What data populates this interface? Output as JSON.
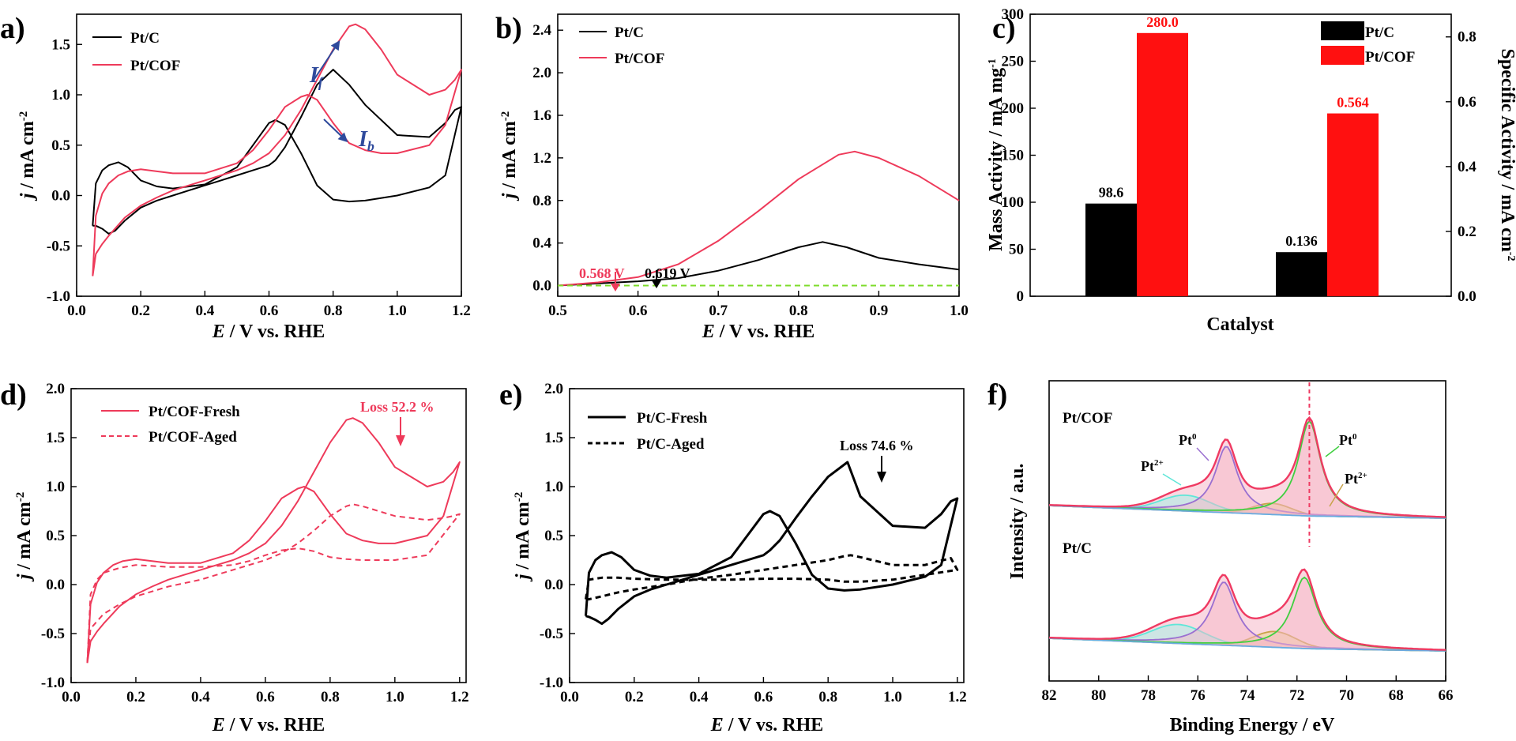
{
  "colors": {
    "black": "#000000",
    "red": "#ee3a5a",
    "barred": "#ff1010",
    "arrow_blue": "#2f4a9c",
    "dash_green": "#7ddc2a",
    "pt0_purple": "#9a6fd0",
    "pt0_green": "#3fcf3f",
    "pt2_cyan": "#5fe6d8",
    "pt2_gold": "#c8a24a",
    "envelope": "#ef3a62",
    "baseline": "#6aaae0",
    "fill_pink": "#f6b8c8",
    "fill_cyan": "#9ff2e8",
    "fill_gold": "#ecd68a"
  },
  "chart_data": [
    {
      "panel": "a)",
      "type": "line",
      "xlabel": {
        "sym": "E",
        "rest": " / V vs. RHE"
      },
      "ylabel": {
        "sym": "j",
        "rest": " / mA cm",
        "sup": "-2"
      },
      "xlim": [
        0.0,
        1.2
      ],
      "ylim": [
        -1.0,
        1.8
      ],
      "xticks": [
        "0.0",
        "0.2",
        "0.4",
        "0.6",
        "0.8",
        "1.0",
        "1.2"
      ],
      "yticks": [
        "-1.0",
        "-0.5",
        "0.0",
        "0.5",
        "1.0",
        "1.5"
      ],
      "legend": [
        "Pt/C",
        "Pt/COF"
      ],
      "annotations": {
        "forward": "I",
        "forward_sub": "f",
        "backward": "I",
        "backward_sub": "b"
      },
      "series": [
        {
          "name": "Pt/C",
          "color": "#000000",
          "x": [
            0.05,
            0.06,
            0.08,
            0.1,
            0.13,
            0.16,
            0.2,
            0.25,
            0.3,
            0.4,
            0.5,
            0.55,
            0.6,
            0.62,
            0.65,
            0.7,
            0.75,
            0.8,
            0.85,
            0.9,
            1.0,
            1.1,
            1.15,
            1.2,
            1.18,
            1.15,
            1.1,
            1.0,
            0.9,
            0.85,
            0.8,
            0.75,
            0.7,
            0.65,
            0.62,
            0.6,
            0.55,
            0.5,
            0.45,
            0.4,
            0.35,
            0.3,
            0.25,
            0.2,
            0.15,
            0.12,
            0.1,
            0.08,
            0.06,
            0.05
          ],
          "y": [
            -0.3,
            0.12,
            0.25,
            0.3,
            0.33,
            0.28,
            0.15,
            0.09,
            0.07,
            0.11,
            0.28,
            0.5,
            0.72,
            0.75,
            0.7,
            0.42,
            0.1,
            -0.04,
            -0.06,
            -0.05,
            0.0,
            0.08,
            0.2,
            0.88,
            0.85,
            0.72,
            0.58,
            0.6,
            0.9,
            1.1,
            1.25,
            1.1,
            0.78,
            0.48,
            0.35,
            0.3,
            0.25,
            0.2,
            0.15,
            0.1,
            0.05,
            0.0,
            -0.05,
            -0.12,
            -0.25,
            -0.35,
            -0.38,
            -0.33,
            -0.3,
            -0.3
          ]
        },
        {
          "name": "Pt/COF",
          "color": "#ee3a5a",
          "x": [
            0.05,
            0.06,
            0.08,
            0.1,
            0.13,
            0.16,
            0.2,
            0.25,
            0.3,
            0.4,
            0.5,
            0.55,
            0.6,
            0.65,
            0.7,
            0.72,
            0.75,
            0.8,
            0.85,
            0.9,
            0.95,
            1.0,
            1.1,
            1.15,
            1.2,
            1.18,
            1.15,
            1.1,
            1.0,
            0.95,
            0.9,
            0.87,
            0.85,
            0.8,
            0.75,
            0.7,
            0.65,
            0.6,
            0.55,
            0.5,
            0.45,
            0.4,
            0.35,
            0.3,
            0.25,
            0.2,
            0.15,
            0.1,
            0.08,
            0.06,
            0.05
          ],
          "y": [
            -0.8,
            -0.2,
            0.02,
            0.12,
            0.2,
            0.24,
            0.26,
            0.24,
            0.22,
            0.22,
            0.32,
            0.45,
            0.65,
            0.88,
            0.98,
            1.0,
            0.95,
            0.72,
            0.52,
            0.45,
            0.42,
            0.42,
            0.5,
            0.7,
            1.25,
            1.15,
            1.05,
            1.0,
            1.2,
            1.45,
            1.65,
            1.7,
            1.68,
            1.45,
            1.15,
            0.85,
            0.6,
            0.42,
            0.32,
            0.25,
            0.2,
            0.15,
            0.1,
            0.05,
            -0.02,
            -0.1,
            -0.22,
            -0.4,
            -0.48,
            -0.58,
            -0.8
          ]
        }
      ]
    },
    {
      "panel": "b)",
      "type": "line",
      "xlabel": {
        "sym": "E",
        "rest": " / V vs. RHE"
      },
      "ylabel": {
        "sym": "j",
        "rest": " / mA cm",
        "sup": "-2"
      },
      "xlim": [
        0.5,
        1.0
      ],
      "ylim": [
        -0.1,
        2.55
      ],
      "xticks": [
        "0.5",
        "0.6",
        "0.7",
        "0.8",
        "0.9",
        "1.0"
      ],
      "yticks": [
        "0.0",
        "0.4",
        "0.8",
        "1.2",
        "1.6",
        "2.0",
        "2.4"
      ],
      "legend": [
        "Pt/C",
        "Pt/COF"
      ],
      "onset_labels": {
        "pt_cof": "0.568 V",
        "pt_c": "0.619 V"
      },
      "series": [
        {
          "name": "Pt/C",
          "color": "#000000",
          "x": [
            0.5,
            0.55,
            0.6,
            0.65,
            0.7,
            0.75,
            0.8,
            0.83,
            0.86,
            0.9,
            0.95,
            1.0
          ],
          "y": [
            0.0,
            0.02,
            0.04,
            0.07,
            0.14,
            0.24,
            0.36,
            0.41,
            0.36,
            0.26,
            0.2,
            0.15
          ]
        },
        {
          "name": "Pt/COF",
          "color": "#ee3a5a",
          "x": [
            0.5,
            0.55,
            0.6,
            0.65,
            0.7,
            0.75,
            0.8,
            0.85,
            0.87,
            0.9,
            0.95,
            1.0
          ],
          "y": [
            0.0,
            0.03,
            0.08,
            0.2,
            0.42,
            0.7,
            1.0,
            1.23,
            1.26,
            1.2,
            1.03,
            0.8
          ]
        },
        {
          "name": "baseline",
          "color": "#7ddc2a",
          "x": [
            0.5,
            1.0
          ],
          "y": [
            0.0,
            0.0
          ]
        }
      ]
    },
    {
      "panel": "c)",
      "type": "bar",
      "xlabel": "Catalyst",
      "ylabel_left": {
        "text": "Mass Activity / mA mg",
        "sup": "-1"
      },
      "ylabel_right": {
        "text": "Specific Activity / mA cm",
        "sup": "-2"
      },
      "ylim_left": [
        0,
        300
      ],
      "ylim_right": [
        0,
        0.87
      ],
      "yticks_left": [
        "0",
        "50",
        "100",
        "150",
        "200",
        "250",
        "300"
      ],
      "yticks_right": [
        "0.0",
        "0.2",
        "0.4",
        "0.6",
        "0.8"
      ],
      "legend": [
        "Pt/C",
        "Pt/COF"
      ],
      "groups": [
        {
          "name": "Mass Activity",
          "axis": "left",
          "values": [
            98.6,
            280.0
          ],
          "labels": [
            "98.6",
            "280.0"
          ]
        },
        {
          "name": "Specific Activity",
          "axis": "right",
          "values": [
            0.136,
            0.564
          ],
          "labels": [
            "0.136",
            "0.564"
          ]
        }
      ]
    },
    {
      "panel": "d)",
      "type": "line",
      "xlabel": {
        "sym": "E",
        "rest": " / V vs. RHE"
      },
      "ylabel": {
        "sym": "j",
        "rest": " / mA cm",
        "sup": "-2"
      },
      "xlim": [
        0.0,
        1.22
      ],
      "ylim": [
        -1.0,
        2.0
      ],
      "xticks": [
        "0.0",
        "0.2",
        "0.4",
        "0.6",
        "0.8",
        "1.0",
        "1.2"
      ],
      "yticks": [
        "-1.0",
        "-0.5",
        "0.0",
        "0.5",
        "1.0",
        "1.5",
        "2.0"
      ],
      "legend": [
        "Pt/COF-Fresh",
        "Pt/COF-Aged"
      ],
      "loss_label": "Loss 52.2 %",
      "series": [
        {
          "name": "Pt/COF-Fresh",
          "color": "#ee3a5a",
          "dash": false,
          "x": [
            0.05,
            0.06,
            0.08,
            0.1,
            0.13,
            0.16,
            0.2,
            0.25,
            0.3,
            0.4,
            0.5,
            0.55,
            0.6,
            0.65,
            0.7,
            0.72,
            0.75,
            0.8,
            0.85,
            0.9,
            0.95,
            1.0,
            1.1,
            1.15,
            1.2,
            1.18,
            1.15,
            1.1,
            1.0,
            0.95,
            0.9,
            0.87,
            0.85,
            0.8,
            0.75,
            0.7,
            0.65,
            0.6,
            0.55,
            0.5,
            0.45,
            0.4,
            0.35,
            0.3,
            0.25,
            0.2,
            0.15,
            0.1,
            0.08,
            0.06,
            0.05
          ],
          "y": [
            -0.8,
            -0.2,
            0.02,
            0.12,
            0.2,
            0.24,
            0.26,
            0.24,
            0.22,
            0.22,
            0.32,
            0.45,
            0.65,
            0.88,
            0.98,
            1.0,
            0.95,
            0.72,
            0.52,
            0.45,
            0.42,
            0.42,
            0.5,
            0.7,
            1.25,
            1.15,
            1.05,
            1.0,
            1.2,
            1.45,
            1.65,
            1.7,
            1.68,
            1.45,
            1.15,
            0.85,
            0.6,
            0.42,
            0.32,
            0.25,
            0.2,
            0.15,
            0.1,
            0.05,
            -0.02,
            -0.1,
            -0.22,
            -0.4,
            -0.48,
            -0.58,
            -0.8
          ]
        },
        {
          "name": "Pt/COF-Aged",
          "color": "#ee3a5a",
          "dash": true,
          "x": [
            0.05,
            0.06,
            0.08,
            0.1,
            0.15,
            0.2,
            0.25,
            0.3,
            0.4,
            0.5,
            0.55,
            0.6,
            0.65,
            0.7,
            0.72,
            0.75,
            0.8,
            0.85,
            0.9,
            1.0,
            1.1,
            1.2,
            1.18,
            1.15,
            1.1,
            1.0,
            0.9,
            0.87,
            0.85,
            0.8,
            0.75,
            0.7,
            0.65,
            0.6,
            0.55,
            0.5,
            0.45,
            0.4,
            0.3,
            0.2,
            0.15,
            0.1,
            0.06,
            0.05
          ],
          "y": [
            -0.8,
            -0.1,
            0.05,
            0.12,
            0.17,
            0.2,
            0.19,
            0.18,
            0.18,
            0.2,
            0.24,
            0.3,
            0.35,
            0.37,
            0.36,
            0.34,
            0.28,
            0.26,
            0.25,
            0.25,
            0.3,
            0.72,
            0.7,
            0.68,
            0.66,
            0.7,
            0.8,
            0.82,
            0.8,
            0.7,
            0.55,
            0.42,
            0.32,
            0.25,
            0.2,
            0.15,
            0.1,
            0.05,
            -0.02,
            -0.12,
            -0.2,
            -0.3,
            -0.45,
            -0.8
          ]
        }
      ]
    },
    {
      "panel": "e)",
      "type": "line",
      "xlabel": {
        "sym": "E",
        "rest": " / V vs. RHE"
      },
      "ylabel": {
        "sym": "j",
        "rest": " / mA cm",
        "sup": "-2"
      },
      "xlim": [
        0.0,
        1.22
      ],
      "ylim": [
        -1.0,
        2.0
      ],
      "xticks": [
        "0.0",
        "0.2",
        "0.4",
        "0.6",
        "0.8",
        "1.0",
        "1.2"
      ],
      "yticks": [
        "-1.0",
        "-0.5",
        "0.0",
        "0.5",
        "1.0",
        "1.5",
        "2.0"
      ],
      "legend": [
        "Pt/C-Fresh",
        "Pt/C-Aged"
      ],
      "loss_label": "Loss 74.6 %",
      "series": [
        {
          "name": "Pt/C-Fresh",
          "color": "#000000",
          "dash": false,
          "x": [
            0.05,
            0.06,
            0.08,
            0.1,
            0.13,
            0.16,
            0.2,
            0.25,
            0.3,
            0.4,
            0.5,
            0.55,
            0.6,
            0.62,
            0.65,
            0.7,
            0.75,
            0.8,
            0.85,
            0.9,
            1.0,
            1.1,
            1.15,
            1.2,
            1.18,
            1.15,
            1.1,
            1.0,
            0.9,
            0.86,
            0.8,
            0.75,
            0.7,
            0.65,
            0.62,
            0.6,
            0.55,
            0.5,
            0.45,
            0.4,
            0.35,
            0.3,
            0.25,
            0.2,
            0.15,
            0.12,
            0.1,
            0.08,
            0.06,
            0.05
          ],
          "y": [
            -0.32,
            0.12,
            0.25,
            0.3,
            0.33,
            0.28,
            0.15,
            0.09,
            0.07,
            0.11,
            0.28,
            0.5,
            0.72,
            0.75,
            0.7,
            0.42,
            0.1,
            -0.04,
            -0.06,
            -0.05,
            0.0,
            0.08,
            0.2,
            0.88,
            0.85,
            0.72,
            0.58,
            0.6,
            0.9,
            1.25,
            1.1,
            0.9,
            0.68,
            0.45,
            0.35,
            0.3,
            0.25,
            0.2,
            0.15,
            0.1,
            0.05,
            0.0,
            -0.05,
            -0.12,
            -0.25,
            -0.35,
            -0.4,
            -0.36,
            -0.33,
            -0.32
          ]
        },
        {
          "name": "Pt/C-Aged",
          "color": "#000000",
          "dash": true,
          "x": [
            0.05,
            0.06,
            0.1,
            0.15,
            0.2,
            0.3,
            0.4,
            0.5,
            0.6,
            0.7,
            0.8,
            0.85,
            0.9,
            1.0,
            1.1,
            1.2,
            1.18,
            1.1,
            1.0,
            0.9,
            0.87,
            0.85,
            0.8,
            0.7,
            0.6,
            0.5,
            0.4,
            0.3,
            0.2,
            0.15,
            0.1,
            0.06,
            0.05
          ],
          "y": [
            -0.15,
            0.05,
            0.07,
            0.07,
            0.06,
            0.05,
            0.05,
            0.05,
            0.06,
            0.06,
            0.05,
            0.03,
            0.03,
            0.05,
            0.1,
            0.15,
            0.27,
            0.2,
            0.2,
            0.28,
            0.3,
            0.29,
            0.25,
            0.2,
            0.15,
            0.1,
            0.06,
            0.0,
            -0.05,
            -0.08,
            -0.12,
            -0.15,
            -0.15
          ]
        }
      ]
    },
    {
      "panel": "f)",
      "type": "xps",
      "xlabel": "Binding Energy / eV",
      "ylabel": "Intensity / a.u.",
      "xlim": [
        82,
        66
      ],
      "xticks": [
        "82",
        "80",
        "78",
        "76",
        "74",
        "72",
        "70",
        "68",
        "66"
      ],
      "dashed_marker_eV": 71.5,
      "spectra": [
        {
          "name": "Pt/COF",
          "offset": 0.0,
          "scale": 1.0,
          "peaks": {
            "pt0_a": {
              "center": 74.85,
              "height": 0.42,
              "width": 0.55
            },
            "pt0_b": {
              "center": 71.5,
              "height": 0.6,
              "width": 0.55
            },
            "pt2_a": {
              "center": 76.5,
              "height": 0.1,
              "width": 1.4
            },
            "pt2_b": {
              "center": 73.0,
              "height": 0.07,
              "width": 1.1
            }
          },
          "labels": {
            "pt0_left": "Pt",
            "pt0_left_sup": "0",
            "pt0_right": "Pt",
            "pt0_right_sup": "0",
            "pt2_left": "Pt",
            "pt2_left_sup": "2+",
            "pt2_right": "Pt",
            "pt2_right_sup": "2+"
          }
        },
        {
          "name": "Pt/C",
          "offset": -0.72,
          "scale": 0.95,
          "peaks": {
            "pt0_a": {
              "center": 74.95,
              "height": 0.4,
              "width": 0.6
            },
            "pt0_b": {
              "center": 71.7,
              "height": 0.45,
              "width": 0.6
            },
            "pt2_a": {
              "center": 76.8,
              "height": 0.12,
              "width": 1.5
            },
            "pt2_b": {
              "center": 72.9,
              "height": 0.1,
              "width": 1.2
            }
          },
          "labels": {}
        }
      ]
    }
  ]
}
